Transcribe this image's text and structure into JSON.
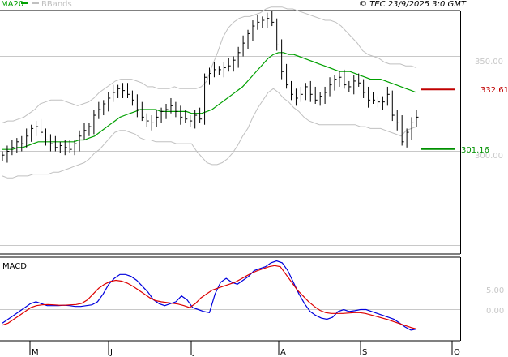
{
  "header": {
    "ma_label": "MA20",
    "bb_label": "BBands",
    "timestamp": "© TEC 23/9/2025 3:0 GMT"
  },
  "colors": {
    "ma": "#00a000",
    "bands": "#c0c0c0",
    "price": "#000000",
    "resistance": "#c00000",
    "support": "#009000",
    "macd": "#0000dd",
    "signal": "#dd0000",
    "grid": "#c8c8c8"
  },
  "chart_data": [
    {
      "type": "line",
      "title": "",
      "x_labels": [
        "M",
        "J",
        "J",
        "A",
        "S",
        "O"
      ],
      "y_ticks": [
        "350.00",
        "300.00"
      ],
      "levels": [
        {
          "name": "resistance",
          "label": "332.61",
          "value": 332.61
        },
        {
          "name": "support",
          "label": "301.16",
          "value": 301.16
        }
      ],
      "price_close": [
        298,
        300,
        302,
        305,
        304,
        308,
        312,
        313,
        310,
        306,
        304,
        302,
        303,
        302,
        301,
        304,
        308,
        311,
        313,
        319,
        322,
        325,
        328,
        331,
        333,
        332,
        330,
        327,
        322,
        318,
        316,
        315,
        318,
        321,
        322,
        324,
        321,
        318,
        317,
        316,
        319,
        317,
        339,
        341,
        343,
        343,
        344,
        345,
        348,
        352,
        357,
        362,
        366,
        368,
        369,
        370,
        368,
        356,
        342,
        335,
        330,
        328,
        330,
        334,
        330,
        327,
        329,
        331,
        335,
        338,
        339,
        335,
        334,
        337,
        336,
        331,
        327,
        327,
        326,
        326,
        330,
        319,
        315,
        305,
        310,
        315,
        318
      ],
      "ma20": [
        301,
        301,
        301,
        302,
        302,
        303,
        304,
        305,
        305,
        305,
        305,
        305,
        305,
        305,
        305,
        306,
        306,
        307,
        308,
        310,
        312,
        314,
        316,
        318,
        319,
        320,
        321,
        322,
        322,
        322,
        322,
        321,
        321,
        321,
        321,
        321,
        321,
        320,
        320,
        320,
        321,
        322,
        324,
        326,
        328,
        330,
        332,
        334,
        337,
        340,
        343,
        346,
        349,
        351,
        352,
        352,
        351,
        351,
        350,
        349,
        348,
        347,
        346,
        345,
        344,
        343,
        342,
        342,
        342,
        341,
        340,
        339,
        338,
        338,
        338,
        337,
        336,
        335,
        334,
        333,
        332,
        331
      ],
      "bb_upper": [
        315,
        316,
        316,
        317,
        318,
        320,
        322,
        325,
        326,
        327,
        327,
        327,
        326,
        325,
        324,
        325,
        326,
        328,
        331,
        333,
        335,
        337,
        338,
        338,
        338,
        337,
        336,
        334,
        334,
        333,
        333,
        333,
        334,
        333,
        333,
        333,
        333,
        334,
        337,
        345,
        352,
        360,
        365,
        368,
        370,
        371,
        371,
        372,
        373,
        375,
        376,
        376,
        376,
        375,
        375,
        374,
        373,
        372,
        371,
        370,
        369,
        369,
        368,
        366,
        363,
        360,
        357,
        353,
        351,
        350,
        349,
        347,
        346,
        346,
        346,
        345,
        345,
        344
      ],
      "bb_lower": [
        287,
        286,
        286,
        287,
        287,
        287,
        288,
        288,
        288,
        288,
        289,
        289,
        290,
        291,
        292,
        293,
        294,
        296,
        299,
        301,
        304,
        307,
        310,
        311,
        311,
        310,
        309,
        307,
        306,
        306,
        305,
        305,
        305,
        305,
        304,
        304,
        304,
        304,
        300,
        297,
        294,
        293,
        293,
        294,
        296,
        299,
        303,
        308,
        312,
        318,
        323,
        327,
        331,
        333,
        331,
        328,
        326,
        323,
        321,
        318,
        316,
        315,
        314,
        314,
        314,
        314,
        314,
        314,
        314,
        314,
        313,
        313,
        312,
        312,
        312,
        311,
        310,
        309,
        308,
        311,
        312,
        313
      ]
    },
    {
      "type": "line",
      "title": "MACD",
      "y_ticks": [
        "5.00",
        "0.00"
      ],
      "series": [
        {
          "name": "",
          "values": [
            -3.5,
            -2.5,
            -1.5,
            -0.5,
            0.5,
            1.5,
            2,
            1.5,
            1,
            1,
            1,
            1.1,
            1,
            0.8,
            0.8,
            1,
            1.2,
            2,
            4,
            6.5,
            8,
            9,
            9,
            8.5,
            7.5,
            6,
            4.5,
            2.5,
            1.5,
            1,
            1.5,
            2,
            3.5,
            2.5,
            0.5,
            0,
            -0.5,
            -0.8,
            4,
            7,
            8,
            7,
            6.5,
            7.5,
            8.5,
            10,
            10.5,
            11,
            12,
            12.5,
            12,
            10,
            7,
            4,
            1.5,
            -0.5,
            -1.5,
            -2.2,
            -2.5,
            -2,
            -0.5,
            0,
            -0.5,
            -0.3,
            0,
            0,
            -0.5,
            -1,
            -1.5,
            -2,
            -2.5,
            -3.5,
            -4.5,
            -5.3,
            -5
          ]
        },
        {
          "name": "",
          "values": [
            -4,
            -3.5,
            -2.5,
            -1.5,
            -0.5,
            0.5,
            1,
            1.2,
            1.3,
            1.2,
            1.1,
            1.1,
            1.2,
            1.3,
            1.6,
            2.5,
            4,
            5.5,
            6.5,
            7.2,
            7.5,
            7.3,
            6.8,
            6,
            5,
            4,
            3,
            2.3,
            2,
            1.8,
            1.6,
            1.4,
            1,
            0.5,
            1.5,
            3,
            4,
            5,
            5.5,
            6,
            6.5,
            7,
            7.8,
            8.6,
            9.4,
            10,
            10.5,
            11,
            11.3,
            11,
            9,
            7,
            5,
            3.5,
            2,
            0.8,
            -0.2,
            -0.8,
            -1,
            -1,
            -1,
            -0.9,
            -0.8,
            -0.8,
            -1,
            -1.4,
            -1.8,
            -2.2,
            -2.6,
            -3.1,
            -3.6,
            -4.1,
            -4.6,
            -5
          ]
        }
      ]
    }
  ]
}
